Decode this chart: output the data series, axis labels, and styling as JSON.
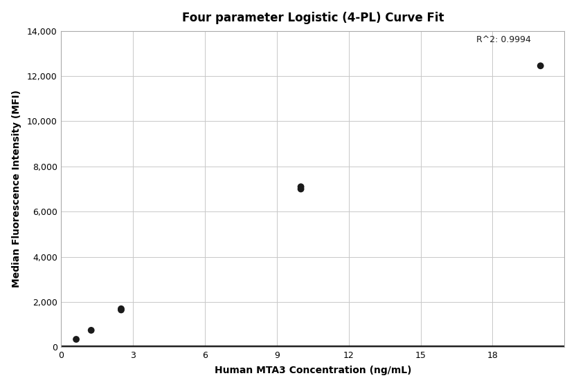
{
  "title": "Four parameter Logistic (4-PL) Curve Fit",
  "xlabel": "Human MTA3 Concentration (ng/mL)",
  "ylabel": "Median Fluorescence Intensity (MFI)",
  "scatter_x": [
    0.625,
    1.25,
    2.5,
    2.5,
    10.0,
    10.0,
    20.0
  ],
  "scatter_y": [
    350,
    750,
    1650,
    1700,
    7000,
    7100,
    12450
  ],
  "r_squared_text": "R^2: 0.9994",
  "r_squared_x": 19.6,
  "r_squared_y": 13400,
  "xlim": [
    0,
    21
  ],
  "ylim": [
    0,
    14000
  ],
  "xticks": [
    0,
    3,
    6,
    9,
    12,
    15,
    18
  ],
  "yticks": [
    0,
    2000,
    4000,
    6000,
    8000,
    10000,
    12000,
    14000
  ],
  "scatter_color": "#1a1a1a",
  "scatter_size": 50,
  "line_color": "#1a1a1a",
  "line_width": 1.6,
  "grid_color": "#c8c8c8",
  "background_color": "#ffffff",
  "title_fontsize": 12,
  "label_fontsize": 10,
  "tick_fontsize": 9,
  "annotation_fontsize": 9,
  "spine_color": "#aaaaaa",
  "four_pl_A": 50,
  "four_pl_B": 1.35,
  "four_pl_C": 55000,
  "four_pl_D": -500
}
